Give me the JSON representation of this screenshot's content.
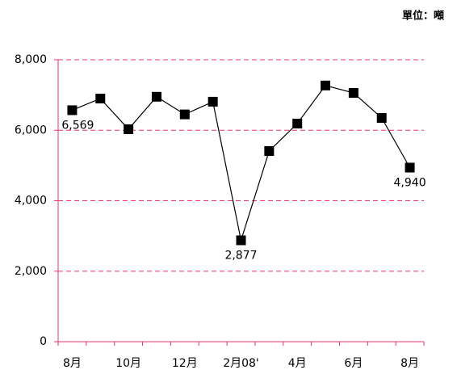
{
  "chart_data": {
    "type": "line",
    "subtitle": "單位：噸",
    "categories": [
      "8月",
      null,
      "10月",
      null,
      "12月",
      null,
      "2月08'",
      null,
      "4月",
      null,
      "6月",
      null,
      "8月"
    ],
    "series": [
      {
        "name": null,
        "color": "#000000",
        "values": [
          6569,
          6900,
          6030,
          6950,
          6450,
          6810,
          2877,
          5410,
          6190,
          7270,
          7060,
          6350,
          4940
        ],
        "value_labels": [
          "6,569",
          null,
          null,
          null,
          null,
          null,
          "2,877",
          null,
          null,
          null,
          null,
          null,
          "4,940"
        ]
      }
    ],
    "ylim": [
      0,
      8000
    ],
    "yticks": [
      0,
      {
        "value": 2000,
        "label": "2,000"
      },
      {
        "value": 4000,
        "label": "4,000"
      },
      {
        "value": 6000,
        "label": "6,000"
      },
      {
        "value": 8000,
        "label": "8,000"
      }
    ],
    "grid": true
  }
}
